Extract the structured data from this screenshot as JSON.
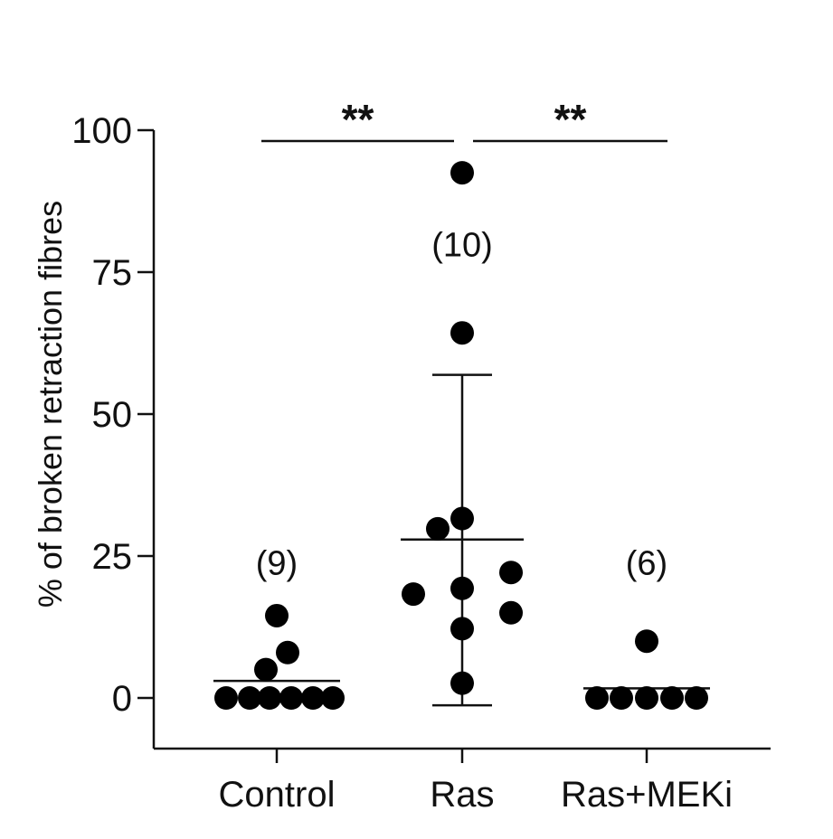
{
  "chart_data": {
    "type": "scatter",
    "ylabel": "% of broken retraction fibres",
    "ylim": [
      -9,
      100
    ],
    "yticks": [
      0,
      25,
      50,
      75,
      100
    ],
    "ytick_labels": [
      "0",
      "25",
      "50",
      "75",
      "100"
    ],
    "categories": [
      "Control",
      "Ras",
      "Ras+MEKi"
    ],
    "groups": [
      {
        "name": "Control",
        "n_label": "(9)",
        "n_label_y": 24,
        "points": [
          0,
          0,
          0,
          0,
          0,
          0,
          5,
          8,
          14.5
        ],
        "mean": 3,
        "error_bar": null
      },
      {
        "name": "Ras",
        "n_label": "(10)",
        "n_label_y": 80,
        "points": [
          92.5,
          64.3,
          31.6,
          29.8,
          18.3,
          19.3,
          22.1,
          15,
          12.2,
          2.6
        ],
        "mean": 27.9,
        "error_bar": [
          -1.3,
          56.9
        ]
      },
      {
        "name": "Ras+MEKi",
        "n_label": "(6)",
        "n_label_y": 24,
        "points": [
          0,
          0,
          0,
          0,
          0,
          10
        ],
        "mean": 1.7,
        "error_bar": null
      }
    ],
    "significance": [
      {
        "from": "Control",
        "to": "Ras",
        "label": "**",
        "y": 98
      },
      {
        "from": "Ras",
        "to": "Ras+MEKi",
        "label": "**",
        "y": 98
      }
    ],
    "grid": false,
    "marker_color": "#000000"
  }
}
